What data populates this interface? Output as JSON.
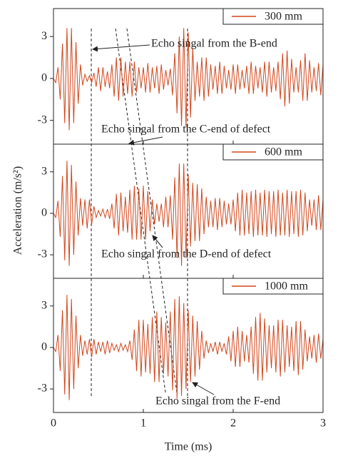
{
  "chart_data": [
    {
      "type": "line",
      "ylabel": "Acceleration (m/s²)",
      "xlim": [
        0,
        3
      ],
      "ylim": [
        -4.7,
        5
      ],
      "yticks": [
        -3,
        0,
        3
      ],
      "legend": "upper right",
      "annotations": [
        "Echo singal from the B-end",
        "Echo singal from the C-end of defect"
      ],
      "x": [
        0,
        0.025,
        0.05,
        0.075,
        0.1,
        0.125,
        0.15,
        0.175,
        0.2,
        0.225,
        0.25,
        0.275,
        0.3,
        0.325,
        0.35,
        0.375,
        0.4,
        0.425,
        0.45,
        0.475,
        0.5,
        0.525,
        0.55,
        0.575,
        0.6,
        0.625,
        0.65,
        0.675,
        0.7,
        0.725,
        0.75,
        0.775,
        0.8,
        0.825,
        0.85,
        0.875,
        0.9,
        0.925,
        0.95,
        0.975,
        1,
        1.025,
        1.05,
        1.075,
        1.1,
        1.125,
        1.15,
        1.175,
        1.2,
        1.225,
        1.25,
        1.275,
        1.3,
        1.325,
        1.35,
        1.375,
        1.4,
        1.425,
        1.45,
        1.475,
        1.5,
        1.525,
        1.55,
        1.575,
        1.6,
        1.625,
        1.65,
        1.675,
        1.7,
        1.725,
        1.75,
        1.775,
        1.8,
        1.825,
        1.85,
        1.875,
        1.9,
        1.925,
        1.95,
        1.975,
        2,
        2.025,
        2.05,
        2.075,
        2.1,
        2.125,
        2.15,
        2.175,
        2.2,
        2.225,
        2.25,
        2.275,
        2.3,
        2.325,
        2.35,
        2.375,
        2.4,
        2.425,
        2.45,
        2.475,
        2.5,
        2.525,
        2.55,
        2.575,
        2.6,
        2.625,
        2.65,
        2.675,
        2.7,
        2.725,
        2.75,
        2.775,
        2.8,
        2.825,
        2.85,
        2.875,
        2.9,
        2.925,
        2.95,
        2.975,
        3
      ],
      "series": [
        {
          "name": "300 mm",
          "color": "#d2461c",
          "values": [
            0,
            -0.3,
            0.8,
            -1.5,
            2.5,
            -3.2,
            3.6,
            -3.7,
            3.6,
            -3.2,
            2.6,
            -1.8,
            1.0,
            -0.5,
            0.3,
            -0.2,
            0.2,
            -0.3,
            0.4,
            -0.6,
            0.8,
            -0.9,
            0.8,
            -0.6,
            0.5,
            -0.7,
            1.0,
            -1.3,
            1.5,
            -1.6,
            1.5,
            -1.3,
            1.2,
            -1.1,
            1.2,
            -1.3,
            1.2,
            -1.0,
            0.8,
            -0.7,
            0.8,
            -1.0,
            1.1,
            -1.0,
            0.8,
            -0.7,
            0.9,
            -1.1,
            1.0,
            -0.8,
            0.6,
            -0.5,
            0.7,
            -1.2,
            1.8,
            -2.5,
            3.0,
            -3.4,
            3.6,
            -3.5,
            3.3,
            -2.8,
            2.2,
            -1.6,
            1.2,
            -1.3,
            1.5,
            -1.6,
            1.5,
            -1.3,
            1.0,
            -0.8,
            0.9,
            -1.1,
            1.2,
            -1.1,
            0.9,
            -0.7,
            0.6,
            -0.8,
            1.0,
            -1.1,
            1.0,
            -0.8,
            0.6,
            -0.7,
            0.9,
            -1.1,
            1.2,
            -1.1,
            0.9,
            -0.7,
            0.8,
            -1.0,
            1.2,
            -1.3,
            1.2,
            -1.0,
            0.8,
            -0.9,
            1.2,
            -1.5,
            1.8,
            -2.0,
            2.0,
            -1.8,
            1.4,
            -1.0,
            0.8,
            -1.0,
            1.3,
            -1.6,
            1.8,
            -1.6,
            1.3,
            -1.0,
            0.8,
            -0.9,
            1.1,
            -1.2,
            1.0
          ]
        }
      ]
    },
    {
      "type": "line",
      "xlim": [
        0,
        3
      ],
      "ylim": [
        -4.7,
        5
      ],
      "yticks": [
        -3,
        0,
        3
      ],
      "legend": "upper right",
      "annotations": [
        "Echo singal from the D-end of defect"
      ],
      "x": [
        0,
        0.025,
        0.05,
        0.075,
        0.1,
        0.125,
        0.15,
        0.175,
        0.2,
        0.225,
        0.25,
        0.275,
        0.3,
        0.325,
        0.35,
        0.375,
        0.4,
        0.425,
        0.45,
        0.475,
        0.5,
        0.525,
        0.55,
        0.575,
        0.6,
        0.625,
        0.65,
        0.675,
        0.7,
        0.725,
        0.75,
        0.775,
        0.8,
        0.825,
        0.85,
        0.875,
        0.9,
        0.925,
        0.95,
        0.975,
        1,
        1.025,
        1.05,
        1.075,
        1.1,
        1.125,
        1.15,
        1.175,
        1.2,
        1.225,
        1.25,
        1.275,
        1.3,
        1.325,
        1.35,
        1.375,
        1.4,
        1.425,
        1.45,
        1.475,
        1.5,
        1.525,
        1.55,
        1.575,
        1.6,
        1.625,
        1.65,
        1.675,
        1.7,
        1.725,
        1.75,
        1.775,
        1.8,
        1.825,
        1.85,
        1.875,
        1.9,
        1.925,
        1.95,
        1.975,
        2,
        2.025,
        2.05,
        2.075,
        2.1,
        2.125,
        2.15,
        2.175,
        2.2,
        2.225,
        2.25,
        2.275,
        2.3,
        2.325,
        2.35,
        2.375,
        2.4,
        2.425,
        2.45,
        2.475,
        2.5,
        2.525,
        2.55,
        2.575,
        2.6,
        2.625,
        2.65,
        2.675,
        2.7,
        2.725,
        2.75,
        2.775,
        2.8,
        2.825,
        2.85,
        2.875,
        2.9,
        2.925,
        2.95,
        2.975,
        3
      ],
      "series": [
        {
          "name": "600 mm",
          "color": "#d2461c",
          "values": [
            0,
            -0.3,
            0.9,
            -1.7,
            2.7,
            -3.4,
            3.8,
            -3.8,
            3.5,
            -3.0,
            2.3,
            -1.6,
            1.1,
            -0.9,
            1.0,
            -1.1,
            1.0,
            -0.8,
            0.5,
            -0.3,
            0.2,
            -0.2,
            0.3,
            -0.3,
            0.3,
            -0.4,
            0.7,
            -1.1,
            1.4,
            -1.6,
            1.5,
            -1.3,
            1.2,
            -1.4,
            1.7,
            -1.9,
            2.0,
            -1.9,
            1.8,
            -1.9,
            2.0,
            -1.9,
            1.6,
            -1.3,
            1.0,
            -0.8,
            0.7,
            -0.6,
            0.7,
            -1.0,
            1.2,
            -1.0,
            1.3,
            -1.9,
            2.6,
            -3.2,
            3.6,
            -3.8,
            3.6,
            -3.2,
            2.8,
            -2.4,
            2.2,
            -2.0,
            2.1,
            -2.0,
            1.8,
            -1.5,
            1.2,
            -1.0,
            0.9,
            -1.0,
            1.1,
            -1.2,
            1.1,
            -1.0,
            0.9,
            -0.8,
            0.7,
            -0.8,
            1.0,
            -1.3,
            1.5,
            -1.6,
            1.7,
            -1.6,
            1.5,
            -1.5,
            1.6,
            -1.7,
            1.7,
            -1.6,
            1.5,
            -1.6,
            1.7,
            -1.7,
            1.6,
            -1.5,
            1.6,
            -1.7,
            1.7,
            -1.6,
            1.5,
            -1.6,
            1.7,
            -1.7,
            1.6,
            -1.5,
            1.6,
            -1.7,
            1.7,
            -1.6,
            1.5,
            -1.3,
            1.0,
            -0.9,
            1.0,
            -1.2,
            1.3,
            -1.2,
            1.0
          ]
        }
      ]
    },
    {
      "type": "line",
      "xlabel": "Time (ms)",
      "xlim": [
        0,
        3
      ],
      "xticks": [
        0,
        1,
        2,
        3
      ],
      "ylim": [
        -4.7,
        5
      ],
      "yticks": [
        -3,
        0,
        3
      ],
      "legend": "upper right",
      "annotations": [
        "Echo singal from the F-end"
      ],
      "x": [
        0,
        0.025,
        0.05,
        0.075,
        0.1,
        0.125,
        0.15,
        0.175,
        0.2,
        0.225,
        0.25,
        0.275,
        0.3,
        0.325,
        0.35,
        0.375,
        0.4,
        0.425,
        0.45,
        0.475,
        0.5,
        0.525,
        0.55,
        0.575,
        0.6,
        0.625,
        0.65,
        0.675,
        0.7,
        0.725,
        0.75,
        0.775,
        0.8,
        0.825,
        0.85,
        0.875,
        0.9,
        0.925,
        0.95,
        0.975,
        1,
        1.025,
        1.05,
        1.075,
        1.1,
        1.125,
        1.15,
        1.175,
        1.2,
        1.225,
        1.25,
        1.275,
        1.3,
        1.325,
        1.35,
        1.375,
        1.4,
        1.425,
        1.45,
        1.475,
        1.5,
        1.525,
        1.55,
        1.575,
        1.6,
        1.625,
        1.65,
        1.675,
        1.7,
        1.725,
        1.75,
        1.775,
        1.8,
        1.825,
        1.85,
        1.875,
        1.9,
        1.925,
        1.95,
        1.975,
        2,
        2.025,
        2.05,
        2.075,
        2.1,
        2.125,
        2.15,
        2.175,
        2.2,
        2.225,
        2.25,
        2.275,
        2.3,
        2.325,
        2.35,
        2.375,
        2.4,
        2.425,
        2.45,
        2.475,
        2.5,
        2.525,
        2.55,
        2.575,
        2.6,
        2.625,
        2.65,
        2.675,
        2.7,
        2.725,
        2.75,
        2.775,
        2.8,
        2.825,
        2.85,
        2.875,
        2.9,
        2.925,
        2.95,
        2.975,
        3
      ],
      "series": [
        {
          "name": "1000 mm",
          "color": "#d2461c",
          "values": [
            0,
            -0.3,
            0.9,
            -1.7,
            2.7,
            -3.4,
            3.8,
            -3.8,
            3.5,
            -3.0,
            2.3,
            -1.5,
            0.9,
            -0.6,
            0.5,
            -0.5,
            0.6,
            -0.7,
            0.6,
            -0.5,
            0.4,
            -0.3,
            0.4,
            -0.5,
            0.5,
            -0.4,
            0.3,
            -0.2,
            0.2,
            -0.3,
            0.3,
            -0.2,
            0.2,
            -0.3,
            0.5,
            -0.9,
            1.3,
            -1.7,
            2.0,
            -2.1,
            2.0,
            -1.8,
            1.7,
            -1.9,
            2.2,
            -2.5,
            2.6,
            -2.5,
            2.2,
            -1.9,
            1.8,
            -2.1,
            2.6,
            -3.1,
            3.5,
            -3.7,
            3.7,
            -3.5,
            3.2,
            -3.0,
            2.7,
            -2.5,
            2.3,
            -2.1,
            1.9,
            -1.6,
            1.2,
            -0.8,
            0.5,
            -0.4,
            0.3,
            -0.3,
            0.4,
            -0.5,
            0.4,
            -0.3,
            0.3,
            -0.5,
            0.8,
            -1.0,
            1.2,
            -1.4,
            1.5,
            -1.4,
            1.2,
            -1.0,
            0.9,
            -1.1,
            1.5,
            -1.9,
            2.2,
            -2.4,
            2.5,
            -2.4,
            2.1,
            -1.8,
            1.6,
            -1.5,
            1.6,
            -1.8,
            2.0,
            -2.1,
            2.0,
            -1.8,
            1.6,
            -1.4,
            1.5,
            -1.7,
            1.9,
            -2.0,
            1.9,
            -1.6,
            1.3,
            -1.0,
            0.8,
            -0.8,
            0.9,
            -1.1,
            1.0,
            -0.8,
            0.6
          ]
        }
      ]
    }
  ]
}
